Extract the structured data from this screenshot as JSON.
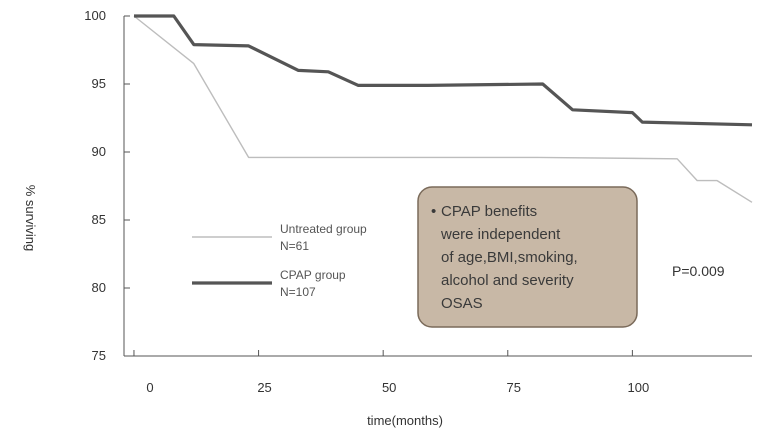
{
  "chart_data": {
    "type": "line",
    "xlabel": "time(months)",
    "ylabel": "% surviving",
    "xlim": [
      -2,
      124
    ],
    "ylim": [
      75,
      100
    ],
    "x_ticks": [
      0,
      25,
      50,
      75,
      100
    ],
    "y_ticks": [
      75,
      80,
      85,
      90,
      95,
      100
    ],
    "grid": false,
    "legend": {
      "placement": "left-middle",
      "entries": [
        {
          "line1": "Untreated group",
          "line2": "N=61"
        },
        {
          "line1": "CPAP group",
          "line2": "N=107"
        }
      ]
    },
    "series": [
      {
        "color": "#bdbdbd",
        "x": [
          0,
          12,
          23,
          59,
          81,
          109,
          113,
          117,
          124
        ],
        "y": [
          100,
          96.5,
          89.6,
          89.6,
          89.6,
          89.5,
          87.9,
          87.9,
          86.3
        ]
      },
      {
        "color": "#555555",
        "x": [
          0,
          8,
          12,
          23,
          33,
          39,
          45,
          59,
          82,
          88,
          100,
          102,
          124
        ],
        "y": [
          100,
          100,
          97.9,
          97.8,
          96.0,
          95.9,
          94.9,
          94.9,
          95.0,
          93.1,
          92.9,
          92.2,
          92.0
        ]
      }
    ],
    "annotations": {
      "p_value": "P=0.009",
      "callout": {
        "bullet": "•",
        "lines": [
          "CPAP benefits",
          "were independent",
          "of age,BMI,smoking,",
          "alcohol and severity",
          "OSAS"
        ],
        "fill": "#c8b8a6",
        "border": "#7a6a5a"
      }
    }
  }
}
